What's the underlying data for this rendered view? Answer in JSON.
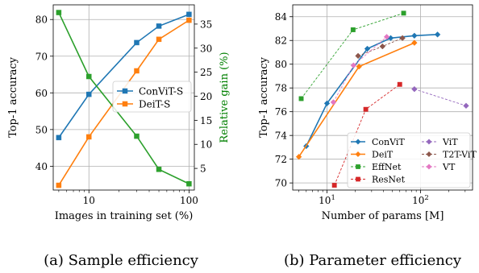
{
  "chart_data": [
    {
      "type": "line",
      "x": [
        5,
        10,
        30,
        50,
        100
      ],
      "xscale": "log",
      "xlim": [
        4.4,
        113
      ],
      "xlabel": "Images in training set (%)",
      "xticks": [
        10,
        100
      ],
      "ylabel": "Top-1 accuracy",
      "ylim": [
        33.5,
        84
      ],
      "yticks": [
        40,
        50,
        60,
        70,
        80
      ],
      "y2label": "Relative gain (%)",
      "y2lim": [
        0.5,
        39
      ],
      "y2ticks": [
        5,
        10,
        15,
        20,
        25,
        30,
        35
      ],
      "series": [
        {
          "name": "ConViT-S",
          "axis": "left",
          "color": "#1f77b4",
          "marker": "square",
          "values": [
            47.8,
            59.6,
            73.7,
            78.2,
            81.4
          ]
        },
        {
          "name": "DeiT-S",
          "axis": "left",
          "color": "#ff7f0e",
          "marker": "square",
          "values": [
            34.8,
            48.0,
            66.0,
            74.6,
            79.8
          ]
        },
        {
          "name": "",
          "axis": "right",
          "color": "#2ca02c",
          "marker": "square",
          "values": [
            37.4,
            24.1,
            11.7,
            4.8,
            1.8
          ]
        }
      ],
      "legend": "center-right",
      "grid": true,
      "caption": "(a) Sample efficiency"
    },
    {
      "type": "line",
      "xscale": "log",
      "xlim": [
        4.3,
        360
      ],
      "xlabel": "Number of params [M]",
      "xticks": [
        10,
        100
      ],
      "ylabel": "Top-1 accuracy",
      "ylim": [
        69.4,
        85
      ],
      "yticks": [
        70,
        72,
        74,
        76,
        78,
        80,
        82,
        84
      ],
      "series": [
        {
          "name": "ConViT",
          "color": "#1f77b4",
          "marker": "diamond",
          "dash": "solid",
          "x": [
            6,
            10,
            27,
            48,
            86,
            152
          ],
          "values": [
            73.1,
            76.7,
            81.3,
            82.2,
            82.4,
            82.5
          ]
        },
        {
          "name": "DeiT",
          "color": "#ff7f0e",
          "marker": "diamond",
          "dash": "solid",
          "x": [
            5,
            22,
            86
          ],
          "values": [
            72.2,
            79.8,
            81.8
          ]
        },
        {
          "name": "EffNet",
          "color": "#2ca02c",
          "marker": "square",
          "dash": "dashed",
          "x": [
            5.3,
            19,
            66
          ],
          "values": [
            77.1,
            82.9,
            84.3
          ]
        },
        {
          "name": "ResNet",
          "color": "#d62728",
          "marker": "square",
          "dash": "dashed",
          "x": [
            12,
            26,
            60
          ],
          "values": [
            69.8,
            76.2,
            78.3
          ]
        },
        {
          "name": "ViT",
          "color": "#9467bd",
          "marker": "diamond",
          "dash": "dashed",
          "x": [
            86,
            307
          ],
          "values": [
            77.9,
            76.5
          ]
        },
        {
          "name": "T2T-ViT",
          "color": "#8c564b",
          "marker": "diamond",
          "dash": "dashed",
          "x": [
            21.5,
            39.2,
            64.1
          ],
          "values": [
            80.7,
            81.5,
            82.2
          ]
        },
        {
          "name": "VT",
          "color": "#e377c2",
          "marker": "diamond",
          "dash": "dashed",
          "x": [
            11.7,
            19.2,
            43.5
          ],
          "values": [
            76.8,
            79.9,
            82.3
          ]
        }
      ],
      "legend": "lower-right",
      "grid": true,
      "caption": "(b) Parameter efficiency"
    }
  ]
}
